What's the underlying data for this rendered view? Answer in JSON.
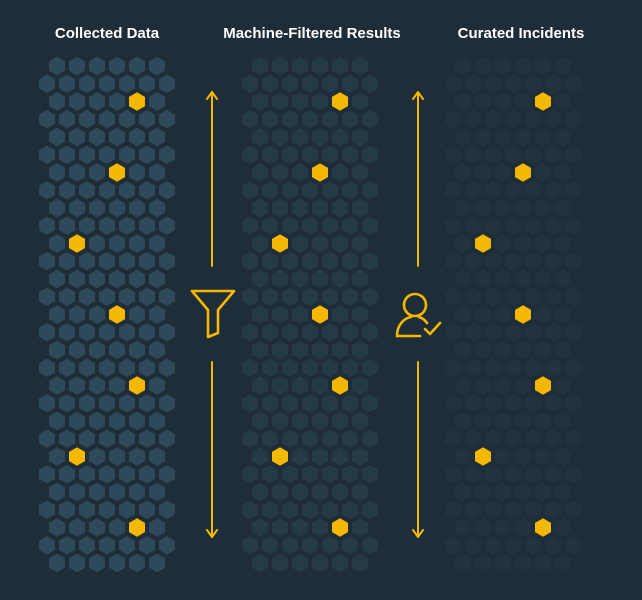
{
  "columns": [
    {
      "title": "Collected Data",
      "hex_fill": "#2e4a5a",
      "highlighted_rows": [
        2,
        6,
        10,
        14,
        18,
        22,
        26
      ],
      "highlighted_hex": "#f5b800"
    },
    {
      "title": "Machine-Filtered Results",
      "hex_fill": "#253a47",
      "highlighted_rows": [
        2,
        6,
        10,
        14,
        18,
        22,
        26
      ],
      "highlighted_hex": "#f5b800"
    },
    {
      "title": "Curated Incidents",
      "hex_fill": "#223340",
      "highlighted_rows": [
        2,
        6,
        10,
        14,
        18,
        22,
        26
      ],
      "highlighted_hex": "#f5b800"
    }
  ],
  "connectors": [
    {
      "icon": "filter-icon",
      "meaning": "machine filtering"
    },
    {
      "icon": "person-check-icon",
      "meaning": "human curation"
    }
  ],
  "colors": {
    "background": "#1f2d38",
    "accent": "#f5b800",
    "title_text": "#ffffff"
  }
}
